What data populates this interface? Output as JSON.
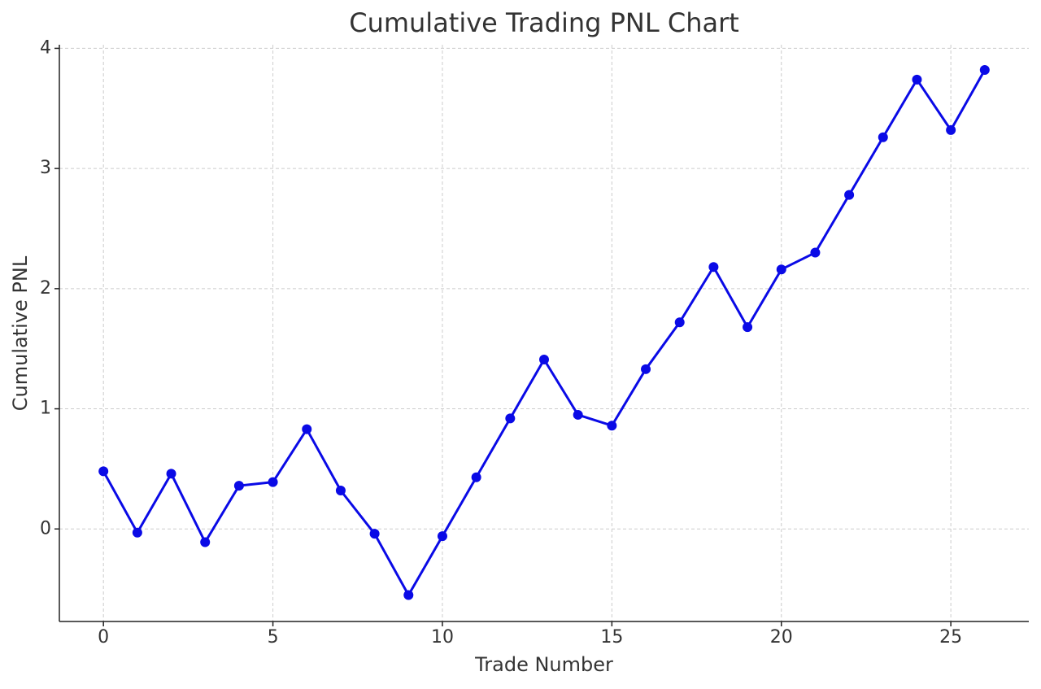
{
  "chart_data": {
    "type": "line",
    "title": "Cumulative Trading PNL Chart",
    "x_label": "Trade Number",
    "y_label": "Cumulative PNL",
    "x": [
      0,
      1,
      2,
      3,
      4,
      5,
      6,
      7,
      8,
      9,
      10,
      11,
      12,
      13,
      14,
      15,
      16,
      17,
      18,
      19,
      20,
      21,
      22,
      23,
      24,
      25,
      26
    ],
    "values": [
      0.48,
      -0.03,
      0.46,
      -0.11,
      0.36,
      0.39,
      0.83,
      0.32,
      -0.04,
      -0.55,
      -0.06,
      0.43,
      0.92,
      1.41,
      0.95,
      0.86,
      1.33,
      1.72,
      2.18,
      1.68,
      2.16,
      2.3,
      2.78,
      3.26,
      3.74,
      3.32,
      3.82
    ],
    "color": "#0a0ae6",
    "marker": true,
    "xlim": [
      -1.3,
      27.3
    ],
    "xticks": [
      0,
      5,
      10,
      15,
      20,
      25
    ],
    "ylim": [
      -0.77,
      4.03
    ],
    "yticks": [
      0,
      1,
      2,
      3,
      4
    ],
    "grid": true
  }
}
